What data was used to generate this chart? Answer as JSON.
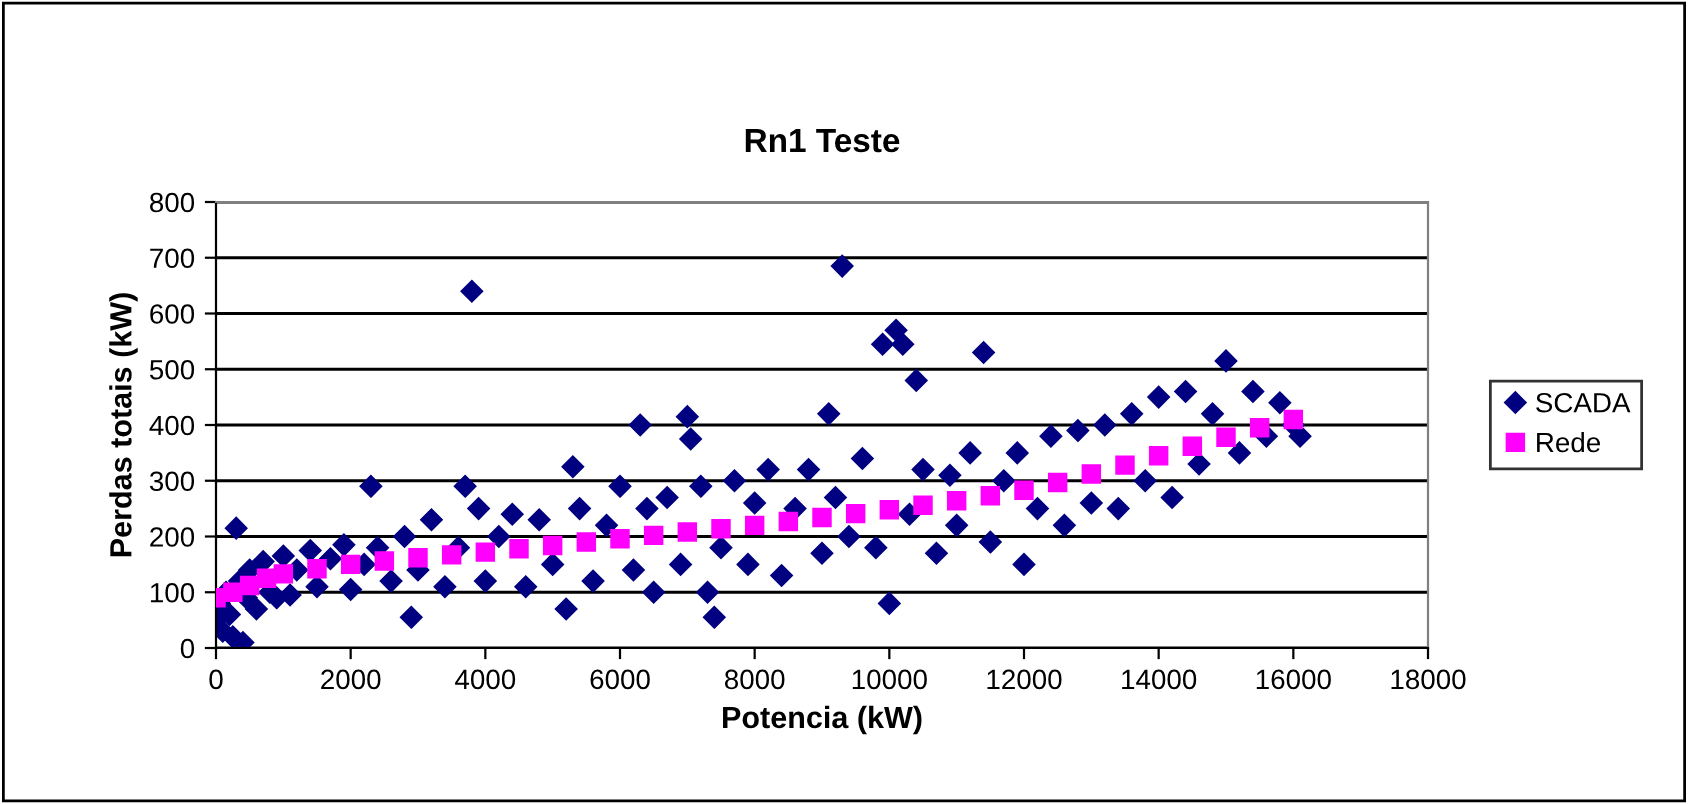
{
  "chart_data": {
    "type": "scatter",
    "title": "Rn1 Teste",
    "xlabel": "Potencia (kW)",
    "ylabel": "Perdas totais (kW)",
    "xlim": [
      0,
      18000
    ],
    "xticks": [
      0,
      2000,
      4000,
      6000,
      8000,
      10000,
      12000,
      14000,
      16000,
      18000
    ],
    "ylim": [
      0,
      800
    ],
    "yticks": [
      0,
      100,
      200,
      300,
      400,
      500,
      600,
      700,
      800
    ],
    "grid": "y",
    "legend": "right",
    "series": [
      {
        "name": "SCADA",
        "color": "#000080",
        "marker": "diamond",
        "x": [
          0,
          50,
          100,
          150,
          200,
          250,
          300,
          350,
          400,
          450,
          500,
          600,
          700,
          800,
          900,
          1000,
          1100,
          1200,
          1400,
          1500,
          1700,
          1900,
          2000,
          2200,
          2300,
          2400,
          2600,
          2800,
          2900,
          3000,
          3200,
          3400,
          3600,
          3700,
          3800,
          3900,
          4000,
          4200,
          4400,
          4600,
          4800,
          5000,
          5200,
          5300,
          5400,
          5600,
          5800,
          6000,
          6200,
          6300,
          6400,
          6500,
          6700,
          6900,
          7000,
          7050,
          7200,
          7300,
          7400,
          7500,
          7700,
          7900,
          8000,
          8200,
          8400,
          8600,
          8800,
          9000,
          9100,
          9200,
          9300,
          9400,
          9600,
          9800,
          9900,
          10000,
          10100,
          10200,
          10300,
          10400,
          10500,
          10700,
          10900,
          11000,
          11200,
          11400,
          11500,
          11700,
          11900,
          12000,
          12200,
          12400,
          12600,
          12800,
          13000,
          13200,
          13400,
          13600,
          13800,
          14000,
          14200,
          14400,
          14600,
          14800,
          15000,
          15200,
          15400,
          15600,
          15800,
          16000,
          16100
        ],
        "values": [
          50,
          80,
          30,
          100,
          60,
          20,
          215,
          120,
          10,
          90,
          140,
          70,
          155,
          100,
          90,
          165,
          95,
          140,
          175,
          110,
          160,
          185,
          105,
          150,
          290,
          180,
          120,
          200,
          55,
          140,
          230,
          110,
          180,
          290,
          640,
          250,
          120,
          200,
          240,
          110,
          230,
          150,
          70,
          325,
          250,
          120,
          220,
          290,
          140,
          400,
          250,
          100,
          270,
          150,
          415,
          375,
          290,
          100,
          55,
          180,
          300,
          150,
          260,
          320,
          130,
          250,
          320,
          170,
          420,
          270,
          685,
          200,
          340,
          180,
          545,
          80,
          570,
          545,
          240,
          480,
          320,
          170,
          310,
          220,
          350,
          530,
          190,
          300,
          350,
          150,
          250,
          380,
          220,
          390,
          260,
          400,
          250,
          420,
          300,
          450,
          270,
          460,
          330,
          420,
          515,
          350,
          460,
          380,
          440,
          400,
          380
        ]
      },
      {
        "name": "Rede",
        "color": "#ff00ff",
        "marker": "square",
        "x": [
          0,
          250,
          500,
          750,
          1000,
          1500,
          2000,
          2500,
          3000,
          3500,
          4000,
          4500,
          5000,
          5500,
          6000,
          6500,
          7000,
          7500,
          8000,
          8500,
          9000,
          9500,
          10000,
          10500,
          11000,
          11500,
          12000,
          12500,
          13000,
          13500,
          14000,
          14500,
          15000,
          15500,
          16000
        ],
        "values": [
          90,
          100,
          112,
          125,
          133,
          142,
          150,
          156,
          162,
          167,
          172,
          178,
          184,
          190,
          196,
          202,
          208,
          214,
          220,
          227,
          234,
          241,
          248,
          256,
          264,
          273,
          283,
          297,
          312,
          328,
          345,
          362,
          378,
          395,
          410
        ]
      }
    ]
  }
}
